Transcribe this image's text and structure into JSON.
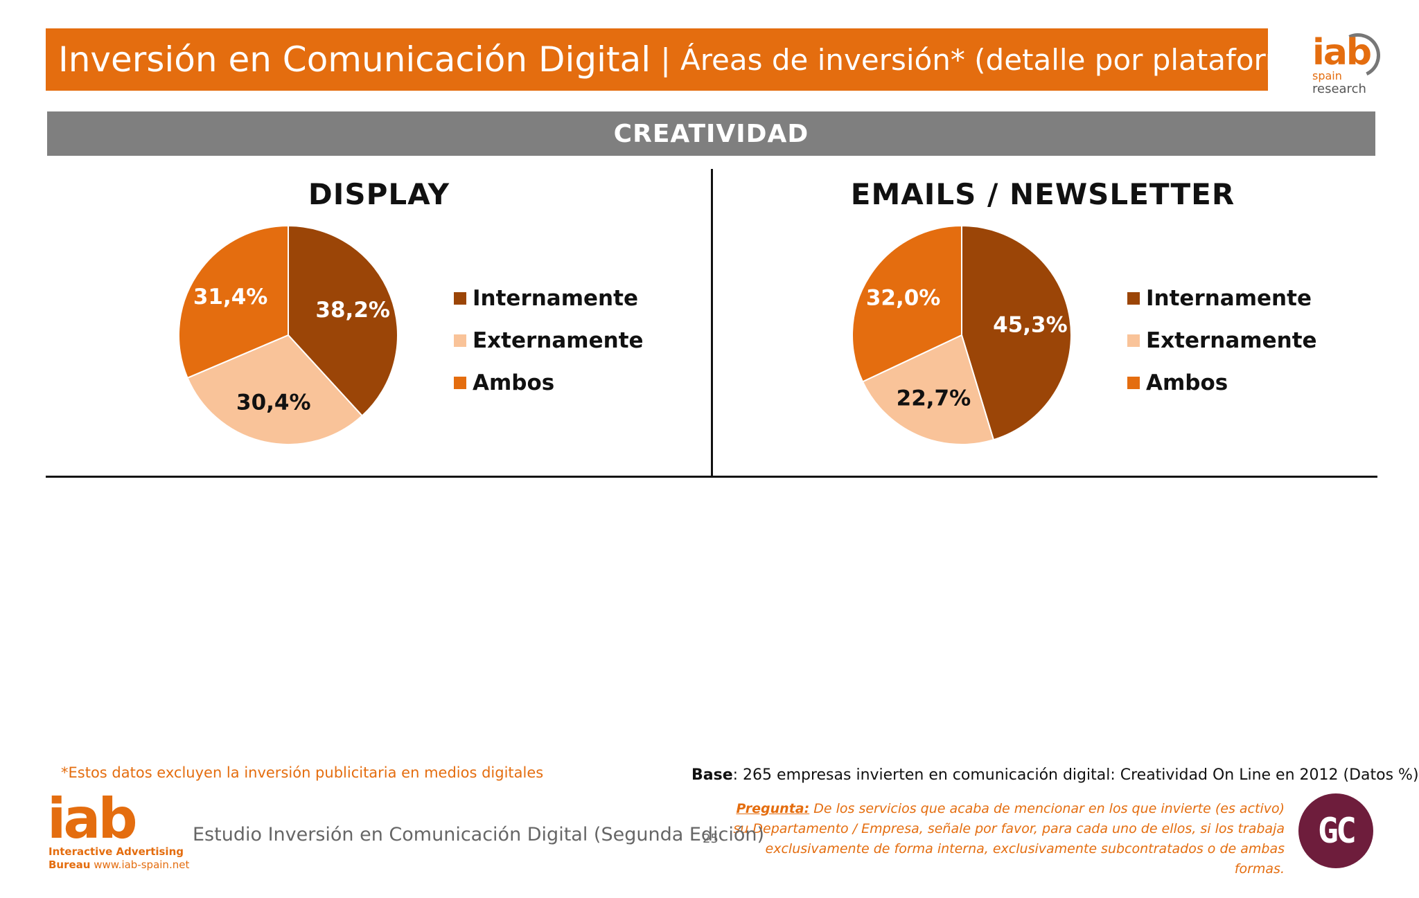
{
  "header": {
    "title_main": "Inversión en Comunicación Digital",
    "title_separator": "|",
    "title_sub": "Áreas de inversión* (detalle por plataforma)"
  },
  "logo_top": {
    "brand": "iab",
    "line1": "spain",
    "line2": "research",
    "color": "#e46d0f"
  },
  "section": {
    "label": "CREATIVIDAD"
  },
  "colors": {
    "internamente": "#9b4507",
    "externamente": "#f9c399",
    "ambos": "#e46d0f"
  },
  "chart_data": [
    {
      "type": "pie",
      "title": "DISPLAY",
      "categories": [
        "Internamente",
        "Externamente",
        "Ambos"
      ],
      "values": [
        38.2,
        30.4,
        31.4
      ],
      "labels": [
        "38,2%",
        "30,4%",
        "31,4%"
      ],
      "legend": [
        "Internamente",
        "Externamente",
        "Ambos"
      ],
      "legend_placement": "right"
    },
    {
      "type": "pie",
      "title": "EMAILS / NEWSLETTER",
      "categories": [
        "Internamente",
        "Externamente",
        "Ambos"
      ],
      "values": [
        45.3,
        22.7,
        32.0
      ],
      "labels": [
        "45,3%",
        "22,7%",
        "32,0%"
      ],
      "legend": [
        "Internamente",
        "Externamente",
        "Ambos"
      ],
      "legend_placement": "right"
    }
  ],
  "footer": {
    "footnote": "*Estos datos excluyen la inversión publicitaria en medios digitales",
    "base_label": "Base",
    "base_text": ": 265 empresas invierten en comunicación digital: Creatividad On Line en 2012 (Datos %)",
    "pregunta_label": "Pregunta:",
    "pregunta_text": " De los servicios que acaba de mencionar en los que invierte (es activo) su Departamento / Empresa, señale por favor, para cada uno de ellos, si los trabaja exclusivamente de forma interna, exclusivamente subcontratados o de ambas formas.",
    "study_title": "Estudio Inversión en Comunicación Digital (Segunda Edición)",
    "page_number": "25"
  },
  "logo_bottom": {
    "brand": "iab",
    "line1": "Interactive Advertising",
    "line2_bold": "Bureau",
    "line2_url": " www.iab-spain.net"
  },
  "gc_logo": {
    "text": "GC",
    "color": "#6e1d3c"
  }
}
